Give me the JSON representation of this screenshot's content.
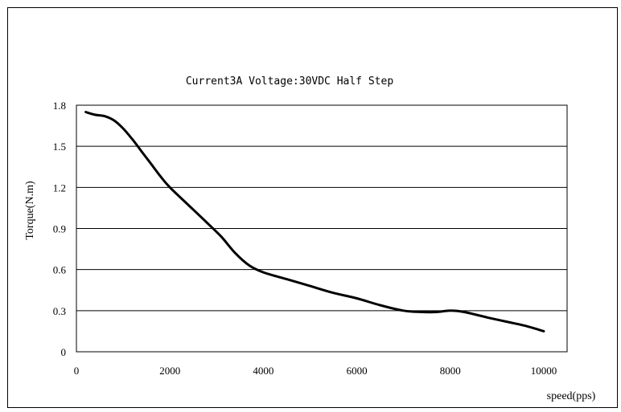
{
  "chart_data": {
    "type": "line",
    "title": "Current3A Voltage:30VDC Half Step",
    "xlabel": "speed(pps)",
    "ylabel": "Torque(N.m)",
    "xlim": [
      0,
      10500
    ],
    "ylim": [
      0,
      1.8
    ],
    "x_ticks": [
      "0",
      "2000",
      "4000",
      "6000",
      "8000",
      "10000"
    ],
    "x_tick_values": [
      0,
      2000,
      4000,
      6000,
      8000,
      10000
    ],
    "y_ticks": [
      "0",
      "0.3",
      "0.6",
      "0.9",
      "1.2",
      "1.5",
      "1.8"
    ],
    "y_tick_values": [
      0,
      0.3,
      0.6,
      0.9,
      1.2,
      1.5,
      1.8
    ],
    "grid": "horizontal",
    "line_color": "#000000",
    "series": [
      {
        "x": [
          200,
          400,
          600,
          800,
          1000,
          1200,
          1400,
          1600,
          1800,
          2000,
          2400,
          2800,
          3100,
          3400,
          3700,
          4000,
          4500,
          5000,
          5500,
          6000,
          6500,
          7000,
          7400,
          7700,
          8000,
          8300,
          8800,
          9200,
          9600,
          10000
        ],
        "y": [
          1.75,
          1.73,
          1.72,
          1.69,
          1.63,
          1.55,
          1.46,
          1.37,
          1.28,
          1.2,
          1.07,
          0.94,
          0.84,
          0.72,
          0.63,
          0.58,
          0.53,
          0.48,
          0.43,
          0.39,
          0.34,
          0.3,
          0.29,
          0.29,
          0.3,
          0.29,
          0.25,
          0.22,
          0.19,
          0.15
        ]
      }
    ]
  }
}
